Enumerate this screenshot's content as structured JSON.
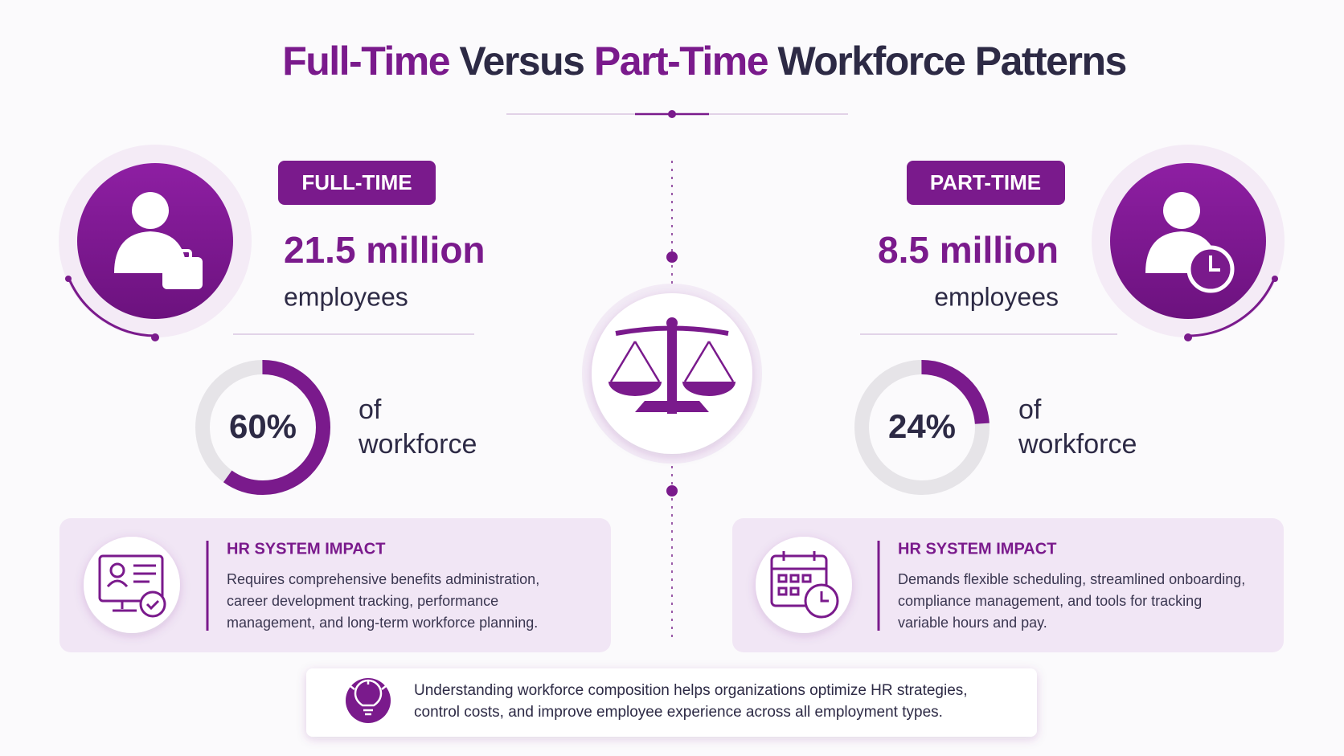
{
  "title": {
    "parts": [
      "Full-Time",
      "Versus",
      "Part-Time",
      "Workforce Patterns"
    ]
  },
  "full_time": {
    "badge": "FULL-TIME",
    "count": "21.5 million",
    "unit": "employees",
    "share": {
      "value": 60,
      "label": "60%"
    },
    "share_text": [
      "of",
      "workforce"
    ],
    "impact": {
      "heading": "HR SYSTEM IMPACT",
      "lines": [
        "Requires comprehensive benefits administration,",
        "career development tracking, performance",
        "management, and long-term workforce planning."
      ]
    }
  },
  "part_time": {
    "badge": "PART-TIME",
    "count": "8.5 million",
    "unit": "employees",
    "share": {
      "value": 24,
      "label": "24%"
    },
    "share_text": [
      "of",
      "workforce"
    ],
    "impact": {
      "heading": "HR SYSTEM IMPACT",
      "lines": [
        "Demands flexible scheduling, streamlined onboarding,",
        "compliance management, and tools for tracking",
        "variable hours and pay."
      ]
    }
  },
  "footer": {
    "lines": [
      "Understanding workforce composition helps organizations optimize HR strategies,",
      "control costs, and improve employee experience across all employment types."
    ]
  }
}
